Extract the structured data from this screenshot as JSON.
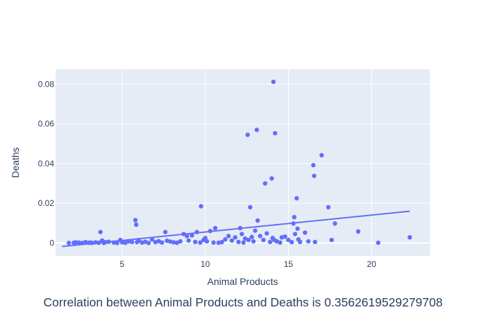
{
  "caption": "Correlation between Animal Products and Deaths is 0.3562619529279708",
  "colors": {
    "plot_bg": "#E5ECF6",
    "grid": "#ffffff",
    "marker": "#636EFA",
    "trendline": "#636EFA",
    "text": "#2a3f5f"
  },
  "chart_data": {
    "type": "scatter",
    "xlabel": "Animal Products",
    "ylabel": "Deaths",
    "xlim": [
      1.0,
      23.5
    ],
    "ylim": [
      -0.0065,
      0.0875
    ],
    "xticks": [
      5,
      10,
      15,
      20
    ],
    "yticks": [
      0,
      0.02,
      0.04,
      0.06,
      0.08
    ],
    "ytick_labels": [
      "0",
      "0.02",
      "0.04",
      "0.06",
      "0.08"
    ],
    "grid": true,
    "legend": false,
    "points": [
      [
        1.8,
        0.0
      ],
      [
        2.1,
        0.0001
      ],
      [
        2.2,
        0.0003
      ],
      [
        2.4,
        0.0002
      ],
      [
        2.6,
        0.0
      ],
      [
        2.8,
        0.0004
      ],
      [
        3.0,
        0.0001
      ],
      [
        3.1,
        0.0002
      ],
      [
        3.2,
        0.0
      ],
      [
        3.4,
        0.0003
      ],
      [
        3.6,
        0.0001
      ],
      [
        3.7,
        0.0055
      ],
      [
        3.8,
        0.0012
      ],
      [
        3.9,
        0.0
      ],
      [
        4.0,
        0.0004
      ],
      [
        4.2,
        0.0006
      ],
      [
        4.5,
        0.0002
      ],
      [
        4.7,
        0.0
      ],
      [
        4.9,
        0.0015
      ],
      [
        5.0,
        0.0003
      ],
      [
        5.2,
        0.0001
      ],
      [
        5.4,
        0.0008
      ],
      [
        5.6,
        0.0005
      ],
      [
        5.8,
        0.0115
      ],
      [
        5.85,
        0.0092
      ],
      [
        5.9,
        0.0004
      ],
      [
        6.0,
        0.0012
      ],
      [
        6.2,
        0.0002
      ],
      [
        6.4,
        0.0006
      ],
      [
        6.6,
        0.0
      ],
      [
        6.8,
        0.0018
      ],
      [
        7.0,
        0.0004
      ],
      [
        7.2,
        0.0009
      ],
      [
        7.4,
        0.0002
      ],
      [
        7.6,
        0.0055
      ],
      [
        7.7,
        0.0011
      ],
      [
        7.9,
        0.0007
      ],
      [
        8.1,
        0.0003
      ],
      [
        8.3,
        0.0001
      ],
      [
        8.5,
        0.0008
      ],
      [
        8.7,
        0.0045
      ],
      [
        8.9,
        0.0035
      ],
      [
        9.0,
        0.0012
      ],
      [
        9.2,
        0.0038
      ],
      [
        9.4,
        0.0005
      ],
      [
        9.5,
        0.0055
      ],
      [
        9.7,
        0.0002
      ],
      [
        9.75,
        0.0185
      ],
      [
        9.9,
        0.0015
      ],
      [
        10.0,
        0.0025
      ],
      [
        10.1,
        0.0008
      ],
      [
        10.3,
        0.006
      ],
      [
        10.5,
        0.0002
      ],
      [
        10.6,
        0.0075
      ],
      [
        10.8,
        0.0001
      ],
      [
        11.0,
        0.0004
      ],
      [
        11.2,
        0.0018
      ],
      [
        11.4,
        0.0035
      ],
      [
        11.6,
        0.0012
      ],
      [
        11.8,
        0.0028
      ],
      [
        12.0,
        0.0005
      ],
      [
        12.1,
        0.0075
      ],
      [
        12.2,
        0.0045
      ],
      [
        12.3,
        0.0002
      ],
      [
        12.4,
        0.0022
      ],
      [
        12.55,
        0.0545
      ],
      [
        12.6,
        0.0015
      ],
      [
        12.7,
        0.018
      ],
      [
        12.8,
        0.003
      ],
      [
        12.9,
        0.0008
      ],
      [
        13.0,
        0.0062
      ],
      [
        13.1,
        0.057
      ],
      [
        13.15,
        0.0113
      ],
      [
        13.3,
        0.0035
      ],
      [
        13.5,
        0.0015
      ],
      [
        13.6,
        0.03
      ],
      [
        13.7,
        0.0048
      ],
      [
        13.9,
        0.0005
      ],
      [
        14.0,
        0.0325
      ],
      [
        14.05,
        0.0025
      ],
      [
        14.1,
        0.0812
      ],
      [
        14.15,
        0.0015
      ],
      [
        14.2,
        0.0553
      ],
      [
        14.3,
        0.0008
      ],
      [
        14.5,
        0.0002
      ],
      [
        14.6,
        0.0028
      ],
      [
        14.8,
        0.0032
      ],
      [
        15.0,
        0.0015
      ],
      [
        15.2,
        0.0004
      ],
      [
        15.3,
        0.0098
      ],
      [
        15.35,
        0.013
      ],
      [
        15.4,
        0.0045
      ],
      [
        15.5,
        0.0225
      ],
      [
        15.55,
        0.0072
      ],
      [
        15.6,
        0.0018
      ],
      [
        15.7,
        0.0005
      ],
      [
        16.0,
        0.0052
      ],
      [
        16.2,
        0.0008
      ],
      [
        16.5,
        0.0392
      ],
      [
        16.55,
        0.0338
      ],
      [
        16.6,
        0.0005
      ],
      [
        17.0,
        0.0442
      ],
      [
        17.4,
        0.018
      ],
      [
        17.6,
        0.0015
      ],
      [
        17.8,
        0.0098
      ],
      [
        19.2,
        0.0058
      ],
      [
        20.4,
        0.0001
      ],
      [
        22.3,
        0.0028
      ]
    ],
    "trendline": [
      [
        1.4,
        -0.0018
      ],
      [
        22.3,
        0.016
      ]
    ]
  }
}
